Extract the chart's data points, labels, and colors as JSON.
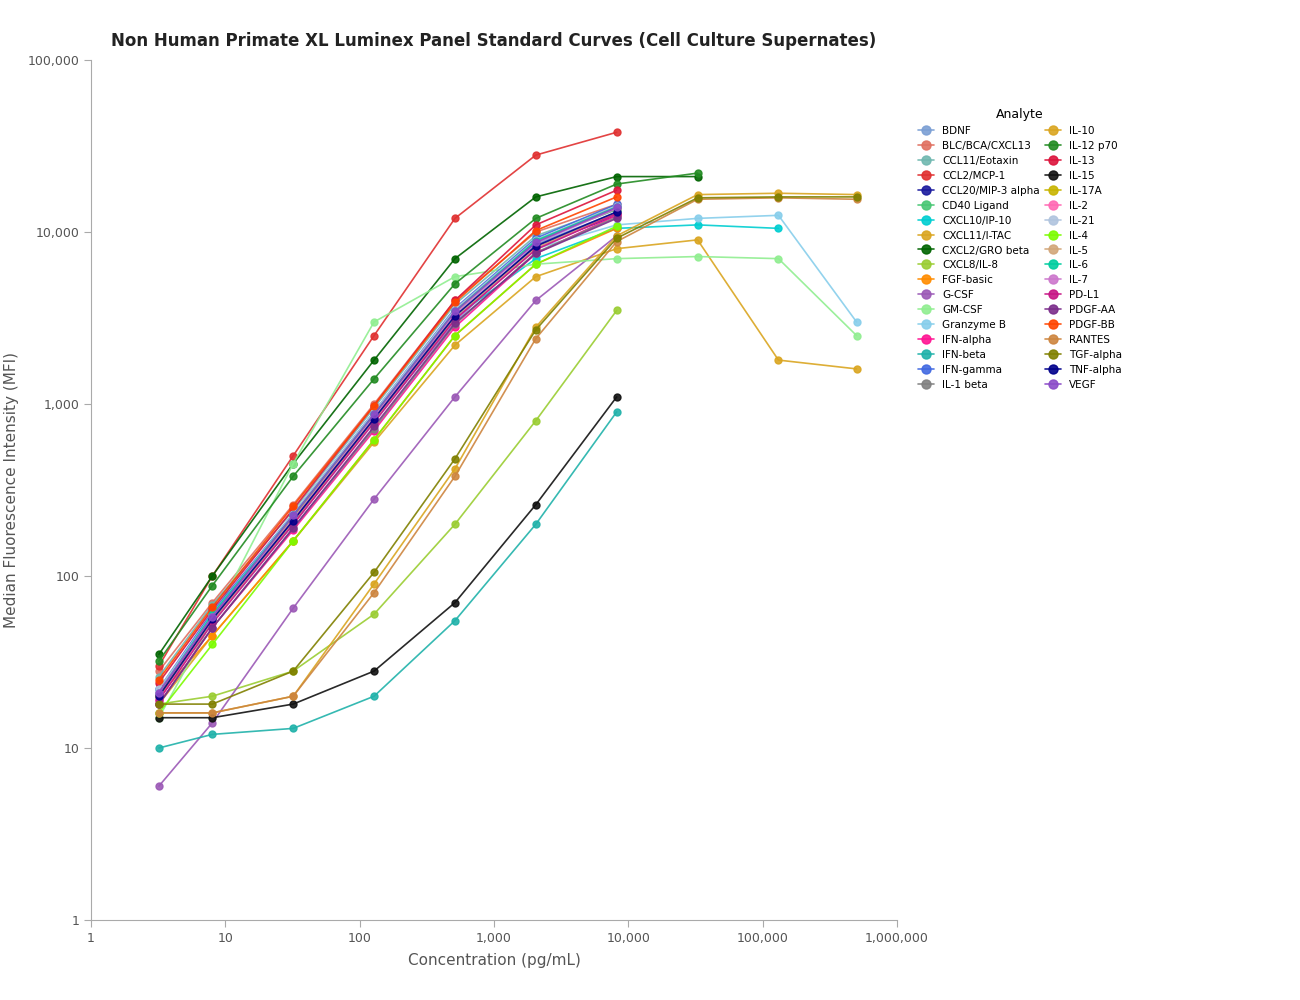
{
  "title": "Non Human Primate XL Luminex Panel Standard Curves (Cell Culture Supernates)",
  "xlabel": "Concentration (pg/mL)",
  "ylabel": "Median Fluorescence Intensity (MFI)",
  "analytes": [
    {
      "name": "BDNF",
      "color": "#7B9FD4",
      "conc": [
        3.2,
        8,
        32,
        128,
        512,
        2048,
        8192
      ],
      "mfi": [
        22,
        55,
        200,
        800,
        3000,
        8500,
        13000
      ]
    },
    {
      "name": "BLC/BCA/CXCL13",
      "color": "#E07060",
      "conc": [
        3.2,
        8,
        32,
        128,
        512,
        2048,
        8192
      ],
      "mfi": [
        28,
        70,
        260,
        1000,
        4000,
        10000,
        14500
      ]
    },
    {
      "name": "CCL11/Eotaxin",
      "color": "#70B8B0",
      "conc": [
        3.2,
        8,
        32,
        128,
        512,
        2048,
        8192
      ],
      "mfi": [
        26,
        68,
        240,
        950,
        3800,
        9500,
        14000
      ]
    },
    {
      "name": "CCL2/MCP-1",
      "color": "#E03030",
      "conc": [
        3.2,
        8,
        32,
        128,
        512,
        2048,
        8192
      ],
      "mfi": [
        30,
        100,
        500,
        2500,
        12000,
        28000,
        38000
      ]
    },
    {
      "name": "CCL20/MIP-3 alpha",
      "color": "#1A1A9E",
      "conc": [
        3.2,
        8,
        32,
        128,
        512,
        2048,
        8192
      ],
      "mfi": [
        20,
        58,
        210,
        820,
        3200,
        8200,
        12500
      ]
    },
    {
      "name": "CD40 Ligand",
      "color": "#48C774",
      "conc": [
        3.2,
        8,
        32,
        128,
        512,
        2048,
        8192
      ],
      "mfi": [
        20,
        60,
        220,
        880,
        3500,
        9000,
        13500
      ]
    },
    {
      "name": "CXCL10/IP-10",
      "color": "#00CED1",
      "conc": [
        3.2,
        8,
        32,
        128,
        512,
        2048,
        8192,
        32768,
        131072
      ],
      "mfi": [
        20,
        55,
        220,
        900,
        3200,
        7000,
        10500,
        11000,
        10500
      ]
    },
    {
      "name": "CXCL11/I-TAC",
      "color": "#DAA520",
      "conc": [
        3.2,
        8,
        32,
        128,
        512,
        2048,
        8192,
        32768,
        131072,
        500000
      ],
      "mfi": [
        18,
        45,
        160,
        600,
        2200,
        5500,
        8000,
        9000,
        1800,
        1600
      ]
    },
    {
      "name": "CXCL2/GRO beta",
      "color": "#006400",
      "conc": [
        3.2,
        8,
        32,
        128,
        512,
        2048,
        8192,
        32768
      ],
      "mfi": [
        35,
        100,
        450,
        1800,
        7000,
        16000,
        21000,
        21000
      ]
    },
    {
      "name": "CXCL8/IL-8",
      "color": "#9ACD32",
      "conc": [
        3.2,
        8,
        32,
        128,
        512,
        2048,
        8192
      ],
      "mfi": [
        18,
        20,
        28,
        60,
        200,
        800,
        3500
      ]
    },
    {
      "name": "FGF-basic",
      "color": "#FF8C00",
      "conc": [
        3.2,
        8,
        32,
        128,
        512,
        2048,
        8192
      ],
      "mfi": [
        20,
        45,
        160,
        620,
        2500,
        6500,
        10500
      ]
    },
    {
      "name": "G-CSF",
      "color": "#9B59B6",
      "conc": [
        3.2,
        8,
        32,
        128,
        512,
        2048,
        8192
      ],
      "mfi": [
        6,
        14,
        65,
        280,
        1100,
        4000,
        9500
      ]
    },
    {
      "name": "GM-CSF",
      "color": "#90EE90",
      "conc": [
        3.2,
        8,
        32,
        128,
        512,
        2048,
        8192,
        32768,
        131072,
        500000
      ],
      "mfi": [
        15,
        55,
        450,
        3000,
        5500,
        6500,
        7000,
        7200,
        7000,
        2500
      ]
    },
    {
      "name": "Granzyme B",
      "color": "#87CEEB",
      "conc": [
        3.2,
        8,
        32,
        128,
        512,
        2048,
        8192,
        32768,
        131072,
        500000
      ],
      "mfi": [
        22,
        55,
        200,
        820,
        3200,
        8000,
        11000,
        12000,
        12500,
        3000
      ]
    },
    {
      "name": "IFN-alpha",
      "color": "#FF1493",
      "conc": [
        3.2,
        8,
        32,
        128,
        512,
        2048,
        8192
      ],
      "mfi": [
        18,
        50,
        185,
        700,
        2800,
        7500,
        12500
      ]
    },
    {
      "name": "IFN-beta",
      "color": "#20B2AA",
      "conc": [
        3.2,
        8,
        32,
        128,
        512,
        2048,
        8192
      ],
      "mfi": [
        10,
        12,
        13,
        20,
        55,
        200,
        900
      ]
    },
    {
      "name": "IFN-gamma",
      "color": "#4169E1",
      "conc": [
        3.2,
        8,
        32,
        128,
        512,
        2048,
        8192
      ],
      "mfi": [
        22,
        62,
        230,
        900,
        3600,
        9200,
        14500
      ]
    },
    {
      "name": "IL-1 beta",
      "color": "#808080",
      "conc": [
        3.2,
        8,
        32,
        128,
        512,
        2048,
        8192
      ],
      "mfi": [
        18,
        50,
        190,
        720,
        2900,
        7600,
        12200
      ]
    },
    {
      "name": "IL-10",
      "color": "#DAA520",
      "conc": [
        3.2,
        8,
        32,
        128,
        512,
        2048,
        8192,
        32768,
        131072,
        500000
      ],
      "mfi": [
        16,
        16,
        20,
        90,
        420,
        2800,
        9500,
        16500,
        16800,
        16500
      ]
    },
    {
      "name": "IL-12 p70",
      "color": "#228B22",
      "conc": [
        3.2,
        8,
        32,
        128,
        512,
        2048,
        8192,
        32768
      ],
      "mfi": [
        32,
        88,
        380,
        1400,
        5000,
        12000,
        19000,
        22000
      ]
    },
    {
      "name": "IL-13",
      "color": "#DC143C",
      "conc": [
        3.2,
        8,
        32,
        128,
        512,
        2048,
        8192
      ],
      "mfi": [
        24,
        64,
        245,
        980,
        4000,
        11000,
        17500
      ]
    },
    {
      "name": "IL-15",
      "color": "#111111",
      "conc": [
        3.2,
        8,
        32,
        128,
        512,
        2048,
        8192
      ],
      "mfi": [
        15,
        15,
        18,
        28,
        70,
        260,
        1100
      ]
    },
    {
      "name": "IL-17A",
      "color": "#C8B400",
      "conc": [
        3.2,
        8,
        32,
        128,
        512,
        2048,
        8192
      ],
      "mfi": [
        20,
        58,
        220,
        860,
        3400,
        8800,
        13800
      ]
    },
    {
      "name": "IL-2",
      "color": "#FF69B4",
      "conc": [
        3.2,
        8,
        32,
        128,
        512,
        2048,
        8192
      ],
      "mfi": [
        19,
        55,
        200,
        800,
        3100,
        8000,
        12800
      ]
    },
    {
      "name": "IL-21",
      "color": "#B0C4DE",
      "conc": [
        3.2,
        8,
        32,
        128,
        512,
        2048,
        8192
      ],
      "mfi": [
        22,
        60,
        230,
        900,
        3550,
        9000,
        14200
      ]
    },
    {
      "name": "IL-4",
      "color": "#7CFC00",
      "conc": [
        3.2,
        8,
        32,
        128,
        512,
        2048,
        8192
      ],
      "mfi": [
        16,
        40,
        160,
        620,
        2500,
        6500,
        10800
      ]
    },
    {
      "name": "IL-5",
      "color": "#D2A679",
      "conc": [
        3.2,
        8,
        32,
        128,
        512,
        2048,
        8192
      ],
      "mfi": [
        20,
        55,
        205,
        810,
        3200,
        8100,
        12900
      ]
    },
    {
      "name": "IL-6",
      "color": "#00CDA0",
      "conc": [
        3.2,
        8,
        32,
        128,
        512,
        2048,
        8192
      ],
      "mfi": [
        21,
        60,
        225,
        870,
        3450,
        8900,
        14000
      ]
    },
    {
      "name": "IL-7",
      "color": "#CC77CC",
      "conc": [
        3.2,
        8,
        32,
        128,
        512,
        2048,
        8192
      ],
      "mfi": [
        21,
        58,
        215,
        840,
        3350,
        8600,
        13700
      ]
    },
    {
      "name": "PD-L1",
      "color": "#C71585",
      "conc": [
        3.2,
        8,
        32,
        128,
        512,
        2048,
        8192
      ],
      "mfi": [
        19,
        53,
        200,
        780,
        3100,
        7900,
        12800
      ]
    },
    {
      "name": "PDGF-AA",
      "color": "#7B2D8B",
      "conc": [
        3.2,
        8,
        32,
        128,
        512,
        2048,
        8192
      ],
      "mfi": [
        18,
        50,
        190,
        740,
        2950,
        7500,
        12000
      ]
    },
    {
      "name": "PDGF-BB",
      "color": "#FF4500",
      "conc": [
        3.2,
        8,
        32,
        128,
        512,
        2048,
        8192
      ],
      "mfi": [
        25,
        66,
        255,
        980,
        3900,
        10200,
        16000
      ]
    },
    {
      "name": "RANTES",
      "color": "#CD853F",
      "conc": [
        3.2,
        8,
        32,
        128,
        512,
        2048,
        8192,
        32768,
        131072,
        500000
      ],
      "mfi": [
        16,
        16,
        20,
        80,
        380,
        2400,
        8800,
        15500,
        15800,
        15500
      ]
    },
    {
      "name": "TGF-alpha",
      "color": "#808000",
      "conc": [
        3.2,
        8,
        32,
        128,
        512,
        2048,
        8192,
        32768,
        131072,
        500000
      ],
      "mfi": [
        18,
        18,
        28,
        105,
        480,
        2700,
        9200,
        15800,
        16000,
        16000
      ]
    },
    {
      "name": "TNF-alpha",
      "color": "#00008B",
      "conc": [
        3.2,
        8,
        32,
        128,
        512,
        2048,
        8192
      ],
      "mfi": [
        20,
        56,
        210,
        820,
        3250,
        8300,
        13100
      ]
    },
    {
      "name": "VEGF",
      "color": "#8B4BC8",
      "conc": [
        3.2,
        8,
        32,
        128,
        512,
        2048,
        8192
      ],
      "mfi": [
        21,
        58,
        225,
        870,
        3450,
        8700,
        13900
      ]
    }
  ]
}
